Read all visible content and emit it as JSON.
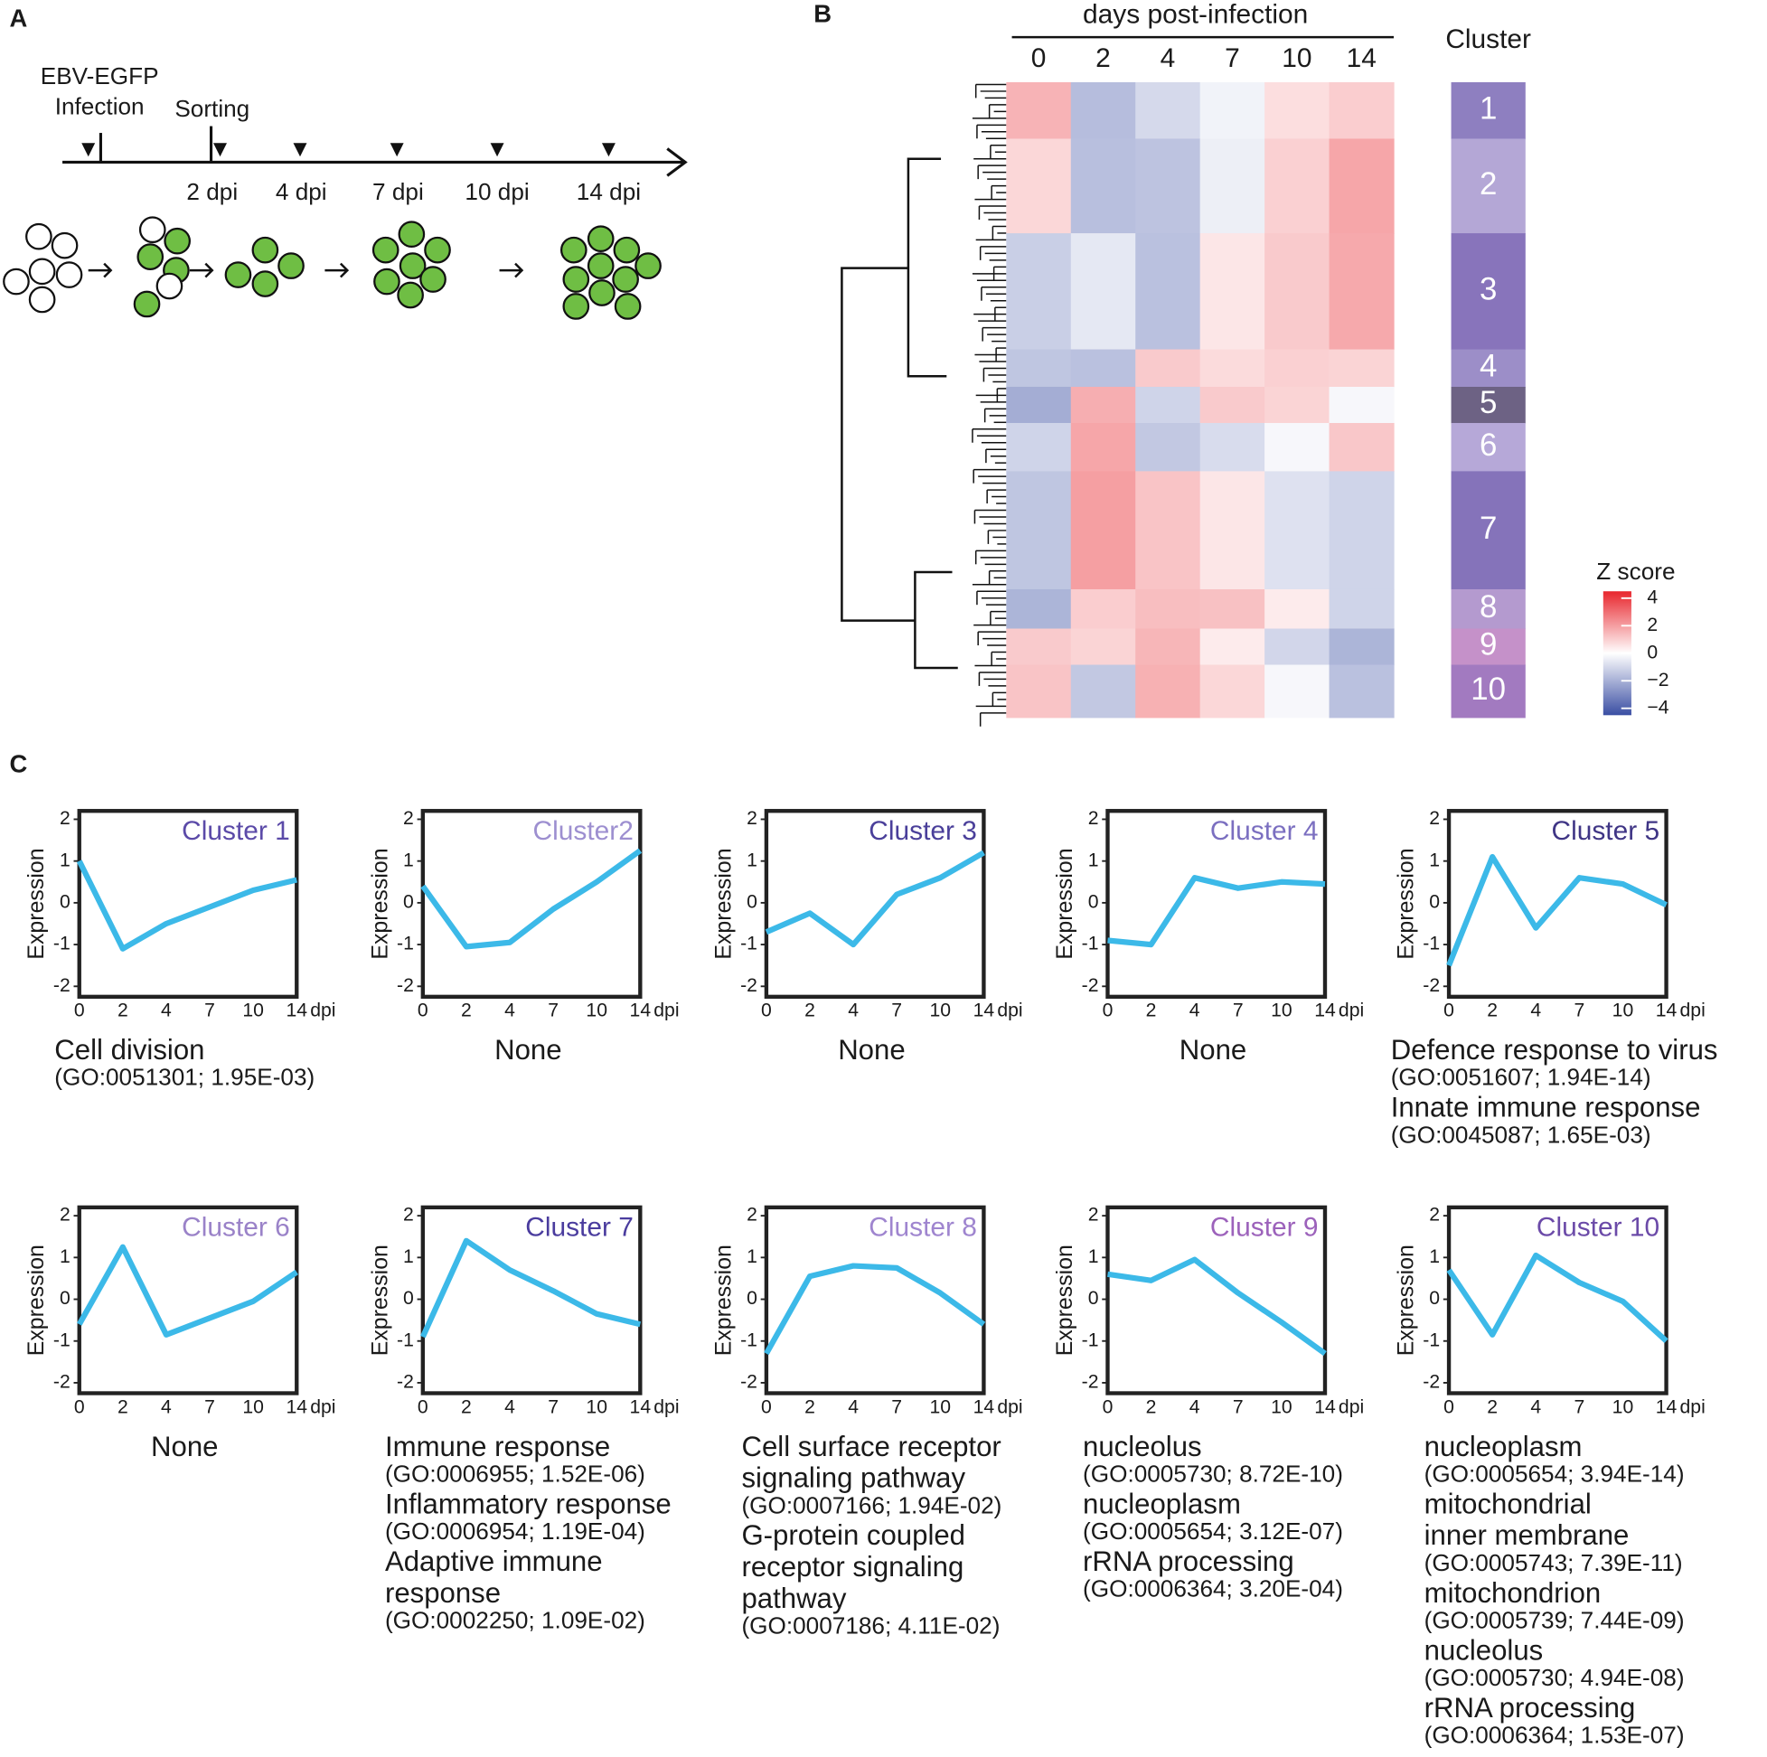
{
  "panel_labels": [
    "A",
    "B",
    "C"
  ],
  "timeline": {
    "infection": [
      "EBV-EGFP",
      "Infection"
    ],
    "sorting": "Sorting",
    "timepoints": [
      "2 dpi",
      "4 dpi",
      "7 dpi",
      "10 dpi",
      "14 dpi"
    ]
  },
  "chart_data": [
    {
      "type": "heatmap",
      "title": "days post-infection",
      "categories": [
        "0",
        "2",
        "4",
        "7",
        "10",
        "14"
      ],
      "cluster_label": "Cluster",
      "clusters": [
        "1",
        "2",
        "3",
        "4",
        "5",
        "6",
        "7",
        "8",
        "9",
        "10"
      ],
      "cluster_sizes": [
        8.9,
        14.9,
        18.3,
        5.9,
        5.7,
        7.6,
        18.6,
        6.2,
        5.7,
        8.3
      ],
      "cluster_colors": [
        "#8e7fc0",
        "#b4a7d6",
        "#8874bb",
        "#9c8ec8",
        "#6d6284",
        "#b6a8d8",
        "#8573ba",
        "#b49acf",
        "#c591c9",
        "#a27ac0"
      ],
      "colorbar": {
        "title": "Z score",
        "lim": [
          -4.5,
          4.5
        ],
        "ticks": [
          4,
          2,
          0,
          {
            "value": -2,
            "label": "−2"
          },
          {
            "value": -4,
            "label": "−4"
          }
        ],
        "colors": [
          "#3a4ea3",
          "#ffffff",
          "#e8262d"
        ]
      }
    },
    {
      "type": "line",
      "title": "Cluster 1",
      "title_color": "#5b4aa8",
      "categories": [
        "0",
        "2",
        "4",
        "7",
        "10",
        "14"
      ],
      "x_unit": "dpi",
      "ylabel": "Expression",
      "values": [
        1.0,
        -1.1,
        -0.5,
        -0.1,
        0.3,
        0.55
      ],
      "color": "#3cb9e8",
      "ylim": [
        -2.25,
        2.2
      ],
      "yticks": [
        -2,
        -1,
        0,
        1,
        2
      ],
      "annotations": [
        {
          "name": [
            "Cell division"
          ],
          "detail": "(GO:0051301; 1.95E-03)"
        }
      ]
    },
    {
      "type": "line",
      "title": "Cluster2",
      "title_color": "#9d8fd0",
      "categories": [
        "0",
        "2",
        "4",
        "7",
        "10",
        "14"
      ],
      "x_unit": "dpi",
      "ylabel": "Expression",
      "values": [
        0.4,
        -1.05,
        -0.95,
        -0.15,
        0.5,
        1.25
      ],
      "color": "#3cb9e8",
      "ylim": [
        -2.25,
        2.2
      ],
      "yticks": [
        -2,
        -1,
        0,
        1,
        2
      ],
      "annotations": [
        {
          "name": [
            "None"
          ]
        }
      ]
    },
    {
      "type": "line",
      "title": "Cluster 3",
      "title_color": "#4a3f9a",
      "categories": [
        "0",
        "2",
        "4",
        "7",
        "10",
        "14"
      ],
      "x_unit": "dpi",
      "ylabel": "Expression",
      "values": [
        -0.7,
        -0.25,
        -1.0,
        0.2,
        0.6,
        1.2
      ],
      "color": "#3cb9e8",
      "ylim": [
        -2.25,
        2.2
      ],
      "yticks": [
        -2,
        -1,
        0,
        1,
        2
      ],
      "annotations": [
        {
          "name": [
            "None"
          ]
        }
      ]
    },
    {
      "type": "line",
      "title": "Cluster 4",
      "title_color": "#7b6fc0",
      "categories": [
        "0",
        "2",
        "4",
        "7",
        "10",
        "14"
      ],
      "x_unit": "dpi",
      "ylabel": "Expression",
      "values": [
        -0.9,
        -1.0,
        0.6,
        0.35,
        0.5,
        0.45
      ],
      "color": "#3cb9e8",
      "ylim": [
        -2.25,
        2.2
      ],
      "yticks": [
        -2,
        -1,
        0,
        1,
        2
      ],
      "annotations": [
        {
          "name": [
            "None"
          ]
        }
      ]
    },
    {
      "type": "line",
      "title": "Cluster 5",
      "title_color": "#3f3585",
      "categories": [
        "0",
        "2",
        "4",
        "7",
        "10",
        "14"
      ],
      "x_unit": "dpi",
      "ylabel": "Expression",
      "values": [
        -1.5,
        1.1,
        -0.6,
        0.6,
        0.45,
        -0.05
      ],
      "color": "#3cb9e8",
      "ylim": [
        -2.25,
        2.2
      ],
      "yticks": [
        -2,
        -1,
        0,
        1,
        2
      ],
      "annotations": [
        {
          "name": [
            "Defence response to virus"
          ],
          "detail": "(GO:0051607; 1.94E-14)"
        },
        {
          "name": [
            "Innate immune response"
          ],
          "detail": "(GO:0045087; 1.65E-03)"
        }
      ]
    },
    {
      "type": "line",
      "title": "Cluster 6",
      "title_color": "#9a82c8",
      "categories": [
        "0",
        "2",
        "4",
        "7",
        "10",
        "14"
      ],
      "x_unit": "dpi",
      "ylabel": "Expression",
      "values": [
        -0.6,
        1.25,
        -0.85,
        -0.45,
        -0.05,
        0.65
      ],
      "color": "#3cb9e8",
      "ylim": [
        -2.25,
        2.2
      ],
      "yticks": [
        -2,
        -1,
        0,
        1,
        2
      ],
      "annotations": [
        {
          "name": [
            "None"
          ]
        }
      ]
    },
    {
      "type": "line",
      "title": "Cluster 7",
      "title_color": "#4a3c9e",
      "categories": [
        "0",
        "2",
        "4",
        "7",
        "10",
        "14"
      ],
      "x_unit": "dpi",
      "ylabel": "Expression",
      "values": [
        -0.9,
        1.4,
        0.7,
        0.2,
        -0.35,
        -0.6
      ],
      "color": "#3cb9e8",
      "ylim": [
        -2.25,
        2.2
      ],
      "yticks": [
        -2,
        -1,
        0,
        1,
        2
      ],
      "annotations": [
        {
          "name": [
            "Immune response"
          ],
          "detail": "(GO:0006955; 1.52E-06)"
        },
        {
          "name": [
            "Inflammatory response"
          ],
          "detail": "(GO:0006954; 1.19E-04)"
        },
        {
          "name": [
            "Adaptive immune",
            "response"
          ],
          "detail": "(GO:0002250; 1.09E-02)"
        }
      ]
    },
    {
      "type": "line",
      "title": "Cluster 8",
      "title_color": "#9f85cf",
      "categories": [
        "0",
        "2",
        "4",
        "7",
        "10",
        "14"
      ],
      "x_unit": "dpi",
      "ylabel": "Expression",
      "values": [
        -1.3,
        0.55,
        0.8,
        0.75,
        0.15,
        -0.6
      ],
      "color": "#3cb9e8",
      "ylim": [
        -2.25,
        2.2
      ],
      "yticks": [
        -2,
        -1,
        0,
        1,
        2
      ],
      "annotations": [
        {
          "name": [
            "Cell surface receptor",
            "signaling pathway"
          ],
          "detail": "(GO:0007166; 1.94E-02)"
        },
        {
          "name": [
            "G-protein coupled",
            "receptor signaling",
            "pathway"
          ],
          "detail": "(GO:0007186; 4.11E-02)"
        }
      ]
    },
    {
      "type": "line",
      "title": "Cluster 9",
      "title_color": "#9c62bb",
      "categories": [
        "0",
        "2",
        "4",
        "7",
        "10",
        "14"
      ],
      "x_unit": "dpi",
      "ylabel": "Expression",
      "values": [
        0.6,
        0.45,
        0.95,
        0.15,
        -0.55,
        -1.3
      ],
      "color": "#3cb9e8",
      "ylim": [
        -2.25,
        2.2
      ],
      "yticks": [
        -2,
        -1,
        0,
        1,
        2
      ],
      "annotations": [
        {
          "name": [
            "nucleolus"
          ],
          "detail": "(GO:0005730; 8.72E-10)"
        },
        {
          "name": [
            "nucleoplasm"
          ],
          "detail": "(GO:0005654; 3.12E-07)"
        },
        {
          "name": [
            "rRNA processing"
          ],
          "detail": "(GO:0006364; 3.20E-04)"
        }
      ]
    },
    {
      "type": "line",
      "title": "Cluster 10",
      "title_color": "#6b4aa8",
      "categories": [
        "0",
        "2",
        "4",
        "7",
        "10",
        "14"
      ],
      "x_unit": "dpi",
      "ylabel": "Expression",
      "values": [
        0.7,
        -0.85,
        1.05,
        0.4,
        -0.05,
        -1.0
      ],
      "color": "#3cb9e8",
      "ylim": [
        -2.25,
        2.2
      ],
      "yticks": [
        -2,
        -1,
        0,
        1,
        2
      ],
      "annotations": [
        {
          "name": [
            "nucleoplasm"
          ],
          "detail": "(GO:0005654; 3.94E-14)"
        },
        {
          "name": [
            "mitochondrial",
            "inner membrane"
          ],
          "detail": "(GO:0005743; 7.39E-11)"
        },
        {
          "name": [
            "mitochondrion"
          ],
          "detail": "(GO:0005739; 7.44E-09)"
        },
        {
          "name": [
            "nucleolus"
          ],
          "detail": "(GO:0005730; 4.94E-08)"
        },
        {
          "name": [
            "rRNA processing"
          ],
          "detail": "(GO:0006364; 1.53E-07)"
        }
      ]
    }
  ]
}
